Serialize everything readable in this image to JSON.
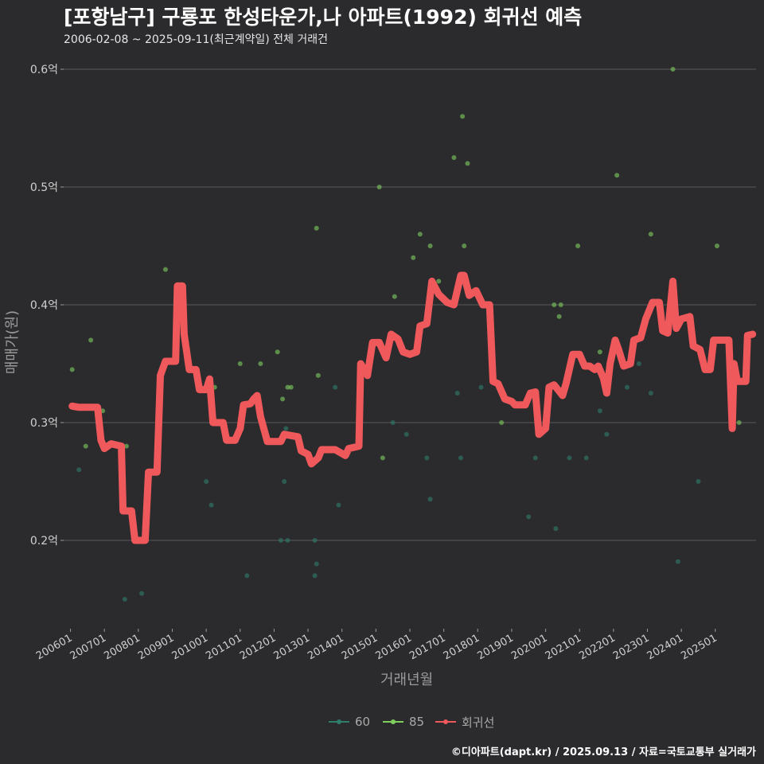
{
  "title": "[포항남구] 구룡포 한성타운가,나 아파트(1992) 회귀선 예측",
  "subtitle": "2006-02-08 ~ 2025-09-11(최근계약일) 전체 거래건",
  "caption": "©디아파트(dapt.kr) / 2025.09.13 / 자료=국토교통부 실거래가",
  "colors": {
    "background": "#2b2b2d",
    "grid": "#5a5a5a",
    "s60": "#2e7d6b",
    "s85": "#7fcf5f",
    "regression": "#f0595c",
    "text": "#d0d0d0"
  },
  "legend": [
    {
      "key": "60",
      "label": "60",
      "color": "#2e7d6b",
      "kind": "point-line"
    },
    {
      "key": "85",
      "label": "85",
      "color": "#7fcf5f",
      "kind": "point-line"
    },
    {
      "key": "reg",
      "label": "회귀선",
      "color": "#f0595c",
      "kind": "point-line"
    }
  ],
  "chart_data": {
    "type": "scatter",
    "title": "[포항남구] 구룡포 한성타운가,나 아파트(1992) 회귀선 예측",
    "xlabel": "거래년월",
    "ylabel": "매매가(원)",
    "ylim": [
      0.125,
      0.625
    ],
    "xlim": [
      2005.8,
      2026.2
    ],
    "grid": true,
    "legend_position": "bottom",
    "y_ticks": [
      {
        "value": 0.2,
        "label": "0.2억"
      },
      {
        "value": 0.3,
        "label": "0.3억"
      },
      {
        "value": 0.4,
        "label": "0.4억"
      },
      {
        "value": 0.5,
        "label": "0.5억"
      },
      {
        "value": 0.6,
        "label": "0.6억"
      }
    ],
    "x_ticks": [
      {
        "value": 2006,
        "label": "200601"
      },
      {
        "value": 2007,
        "label": "200701"
      },
      {
        "value": 2008,
        "label": "200801"
      },
      {
        "value": 2009,
        "label": "200901"
      },
      {
        "value": 2010,
        "label": "201001"
      },
      {
        "value": 2011,
        "label": "201101"
      },
      {
        "value": 2012,
        "label": "201201"
      },
      {
        "value": 2013,
        "label": "201301"
      },
      {
        "value": 2014,
        "label": "201401"
      },
      {
        "value": 2015,
        "label": "201501"
      },
      {
        "value": 2016,
        "label": "201601"
      },
      {
        "value": 2017,
        "label": "201701"
      },
      {
        "value": 2018,
        "label": "201801"
      },
      {
        "value": 2019,
        "label": "201901"
      },
      {
        "value": 2020,
        "label": "202001"
      },
      {
        "value": 2021,
        "label": "202101"
      },
      {
        "value": 2022,
        "label": "202201"
      },
      {
        "value": 2023,
        "label": "202301"
      },
      {
        "value": 2024,
        "label": "202401"
      },
      {
        "value": 2025,
        "label": "202501"
      }
    ],
    "series": [
      {
        "name": "60",
        "color": "#2e7d6b",
        "points": [
          [
            2006.25,
            0.26
          ],
          [
            2007.6,
            0.15
          ],
          [
            2008.1,
            0.155
          ],
          [
            2010.0,
            0.25
          ],
          [
            2010.15,
            0.23
          ],
          [
            2011.2,
            0.17
          ],
          [
            2012.2,
            0.2
          ],
          [
            2012.4,
            0.2
          ],
          [
            2012.3,
            0.25
          ],
          [
            2012.35,
            0.295
          ],
          [
            2013.2,
            0.17
          ],
          [
            2013.2,
            0.2
          ],
          [
            2013.25,
            0.18
          ],
          [
            2013.8,
            0.33
          ],
          [
            2013.9,
            0.23
          ],
          [
            2015.5,
            0.3
          ],
          [
            2015.9,
            0.29
          ],
          [
            2016.5,
            0.27
          ],
          [
            2016.6,
            0.235
          ],
          [
            2017.4,
            0.325
          ],
          [
            2017.5,
            0.27
          ],
          [
            2018.1,
            0.33
          ],
          [
            2019.5,
            0.22
          ],
          [
            2019.7,
            0.27
          ],
          [
            2020.3,
            0.21
          ],
          [
            2020.7,
            0.27
          ],
          [
            2021.2,
            0.27
          ],
          [
            2021.6,
            0.31
          ],
          [
            2021.8,
            0.29
          ],
          [
            2022.4,
            0.33
          ],
          [
            2022.75,
            0.35
          ],
          [
            2023.1,
            0.325
          ],
          [
            2023.9,
            0.182
          ],
          [
            2024.5,
            0.25
          ]
        ]
      },
      {
        "name": "85",
        "color": "#7fcf5f",
        "points": [
          [
            2006.05,
            0.345
          ],
          [
            2006.45,
            0.28
          ],
          [
            2006.6,
            0.37
          ],
          [
            2006.95,
            0.31
          ],
          [
            2007.65,
            0.28
          ],
          [
            2008.8,
            0.43
          ],
          [
            2009.2,
            0.4
          ],
          [
            2009.3,
            0.385
          ],
          [
            2010.25,
            0.33
          ],
          [
            2011.0,
            0.35
          ],
          [
            2011.6,
            0.35
          ],
          [
            2012.1,
            0.36
          ],
          [
            2012.25,
            0.32
          ],
          [
            2012.4,
            0.33
          ],
          [
            2012.5,
            0.33
          ],
          [
            2013.25,
            0.465
          ],
          [
            2013.3,
            0.34
          ],
          [
            2015.1,
            0.5
          ],
          [
            2015.2,
            0.27
          ],
          [
            2015.55,
            0.407
          ],
          [
            2016.1,
            0.44
          ],
          [
            2016.3,
            0.46
          ],
          [
            2016.6,
            0.45
          ],
          [
            2016.85,
            0.42
          ],
          [
            2017.3,
            0.525
          ],
          [
            2017.55,
            0.56
          ],
          [
            2017.6,
            0.45
          ],
          [
            2017.7,
            0.52
          ],
          [
            2018.3,
            0.4
          ],
          [
            2018.7,
            0.3
          ],
          [
            2020.25,
            0.4
          ],
          [
            2020.4,
            0.39
          ],
          [
            2020.45,
            0.4
          ],
          [
            2020.95,
            0.45
          ],
          [
            2021.6,
            0.36
          ],
          [
            2022.1,
            0.51
          ],
          [
            2023.1,
            0.46
          ],
          [
            2023.75,
            0.6
          ],
          [
            2025.05,
            0.45
          ],
          [
            2025.7,
            0.3
          ]
        ]
      },
      {
        "name": "회귀선",
        "color": "#f0595c",
        "type": "line",
        "points": [
          [
            2006.05,
            0.314
          ],
          [
            2006.25,
            0.313
          ],
          [
            2006.8,
            0.313
          ],
          [
            2006.9,
            0.285
          ],
          [
            2007.0,
            0.278
          ],
          [
            2007.2,
            0.282
          ],
          [
            2007.5,
            0.28
          ],
          [
            2007.55,
            0.225
          ],
          [
            2007.8,
            0.225
          ],
          [
            2007.9,
            0.2
          ],
          [
            2008.2,
            0.2
          ],
          [
            2008.3,
            0.258
          ],
          [
            2008.55,
            0.258
          ],
          [
            2008.65,
            0.34
          ],
          [
            2008.8,
            0.352
          ],
          [
            2009.1,
            0.352
          ],
          [
            2009.15,
            0.416
          ],
          [
            2009.3,
            0.416
          ],
          [
            2009.35,
            0.375
          ],
          [
            2009.5,
            0.345
          ],
          [
            2009.7,
            0.345
          ],
          [
            2009.8,
            0.328
          ],
          [
            2010.0,
            0.328
          ],
          [
            2010.1,
            0.337
          ],
          [
            2010.2,
            0.3
          ],
          [
            2010.5,
            0.3
          ],
          [
            2010.6,
            0.285
          ],
          [
            2010.85,
            0.285
          ],
          [
            2011.0,
            0.295
          ],
          [
            2011.1,
            0.315
          ],
          [
            2011.3,
            0.316
          ],
          [
            2011.4,
            0.32
          ],
          [
            2011.5,
            0.323
          ],
          [
            2011.6,
            0.305
          ],
          [
            2011.8,
            0.284
          ],
          [
            2012.2,
            0.284
          ],
          [
            2012.3,
            0.29
          ],
          [
            2012.7,
            0.288
          ],
          [
            2012.8,
            0.276
          ],
          [
            2013.0,
            0.273
          ],
          [
            2013.1,
            0.265
          ],
          [
            2013.3,
            0.27
          ],
          [
            2013.4,
            0.277
          ],
          [
            2013.8,
            0.277
          ],
          [
            2014.1,
            0.272
          ],
          [
            2014.2,
            0.278
          ],
          [
            2014.5,
            0.28
          ],
          [
            2014.55,
            0.35
          ],
          [
            2014.75,
            0.34
          ],
          [
            2014.9,
            0.368
          ],
          [
            2015.1,
            0.368
          ],
          [
            2015.3,
            0.355
          ],
          [
            2015.45,
            0.375
          ],
          [
            2015.65,
            0.371
          ],
          [
            2015.8,
            0.36
          ],
          [
            2016.0,
            0.358
          ],
          [
            2016.2,
            0.36
          ],
          [
            2016.3,
            0.382
          ],
          [
            2016.5,
            0.384
          ],
          [
            2016.65,
            0.42
          ],
          [
            2016.85,
            0.409
          ],
          [
            2017.1,
            0.402
          ],
          [
            2017.3,
            0.4
          ],
          [
            2017.5,
            0.425
          ],
          [
            2017.6,
            0.425
          ],
          [
            2017.75,
            0.408
          ],
          [
            2017.95,
            0.412
          ],
          [
            2018.15,
            0.4
          ],
          [
            2018.35,
            0.4
          ],
          [
            2018.45,
            0.335
          ],
          [
            2018.6,
            0.333
          ],
          [
            2018.8,
            0.32
          ],
          [
            2019.0,
            0.318
          ],
          [
            2019.1,
            0.315
          ],
          [
            2019.4,
            0.315
          ],
          [
            2019.55,
            0.325
          ],
          [
            2019.7,
            0.326
          ],
          [
            2019.8,
            0.29
          ],
          [
            2020.0,
            0.295
          ],
          [
            2020.1,
            0.33
          ],
          [
            2020.25,
            0.332
          ],
          [
            2020.5,
            0.323
          ],
          [
            2020.6,
            0.333
          ],
          [
            2020.8,
            0.358
          ],
          [
            2021.0,
            0.358
          ],
          [
            2021.15,
            0.348
          ],
          [
            2021.3,
            0.348
          ],
          [
            2021.45,
            0.345
          ],
          [
            2021.55,
            0.348
          ],
          [
            2021.7,
            0.338
          ],
          [
            2021.8,
            0.325
          ],
          [
            2021.9,
            0.35
          ],
          [
            2022.05,
            0.37
          ],
          [
            2022.15,
            0.362
          ],
          [
            2022.3,
            0.348
          ],
          [
            2022.5,
            0.35
          ],
          [
            2022.6,
            0.37
          ],
          [
            2022.8,
            0.372
          ],
          [
            2022.95,
            0.388
          ],
          [
            2023.15,
            0.402
          ],
          [
            2023.35,
            0.402
          ],
          [
            2023.45,
            0.378
          ],
          [
            2023.6,
            0.376
          ],
          [
            2023.75,
            0.42
          ],
          [
            2023.85,
            0.38
          ],
          [
            2024.0,
            0.388
          ],
          [
            2024.25,
            0.39
          ],
          [
            2024.35,
            0.365
          ],
          [
            2024.55,
            0.362
          ],
          [
            2024.7,
            0.345
          ],
          [
            2024.85,
            0.345
          ],
          [
            2024.95,
            0.37
          ],
          [
            2025.2,
            0.37
          ],
          [
            2025.4,
            0.37
          ],
          [
            2025.5,
            0.295
          ],
          [
            2025.55,
            0.35
          ],
          [
            2025.65,
            0.335
          ],
          [
            2025.9,
            0.335
          ],
          [
            2025.95,
            0.374
          ],
          [
            2026.1,
            0.375
          ]
        ]
      }
    ]
  }
}
